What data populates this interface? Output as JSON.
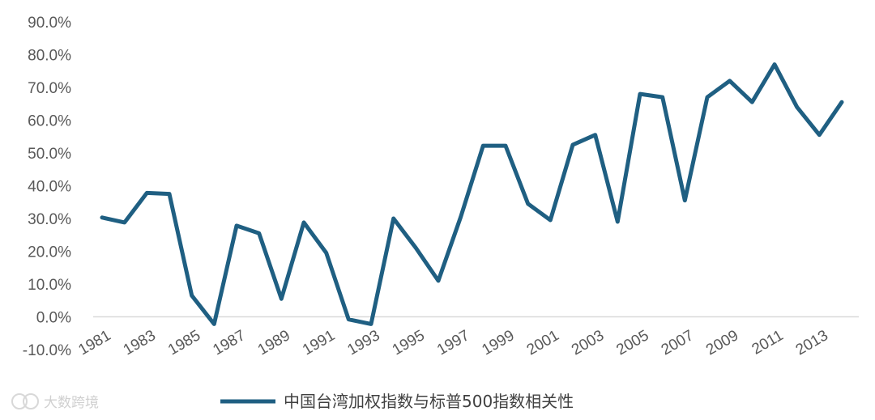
{
  "chart_data": {
    "type": "line",
    "title": "",
    "xlabel": "",
    "ylabel": "",
    "ylim": [
      -10,
      90
    ],
    "ytick_step": 10,
    "ytick_format": "0.0%",
    "x": [
      1981,
      1982,
      1983,
      1984,
      1985,
      1986,
      1987,
      1988,
      1989,
      1990,
      1991,
      1992,
      1993,
      1994,
      1995,
      1996,
      1997,
      1998,
      1999,
      2000,
      2001,
      2002,
      2003,
      2004,
      2005,
      2006,
      2007,
      2008,
      2009,
      2010,
      2011,
      2012,
      2013,
      2014
    ],
    "x_tick_labels": [
      "1981",
      "1983",
      "1985",
      "1987",
      "1989",
      "1991",
      "1993",
      "1995",
      "1997",
      "1999",
      "2001",
      "2003",
      "2005",
      "2007",
      "2009",
      "2011",
      "2013"
    ],
    "series": [
      {
        "name": "中国台湾加权指数与标普500指数相关性",
        "color": "#1f5f82",
        "values": [
          30.3,
          28.8,
          37.8,
          37.5,
          6.5,
          -2.2,
          27.8,
          25.5,
          5.5,
          28.8,
          19.5,
          -0.8,
          -2.2,
          30.0,
          21.0,
          11.0,
          30.5,
          52.2,
          52.2,
          34.5,
          29.5,
          52.5,
          55.5,
          29.0,
          68.0,
          67.0,
          35.5,
          67.0,
          72.0,
          65.5,
          77.0,
          64.0,
          55.5,
          65.5
        ]
      }
    ],
    "grid": false,
    "legend_position": "bottom"
  },
  "watermark": {
    "text": "大数跨境"
  }
}
